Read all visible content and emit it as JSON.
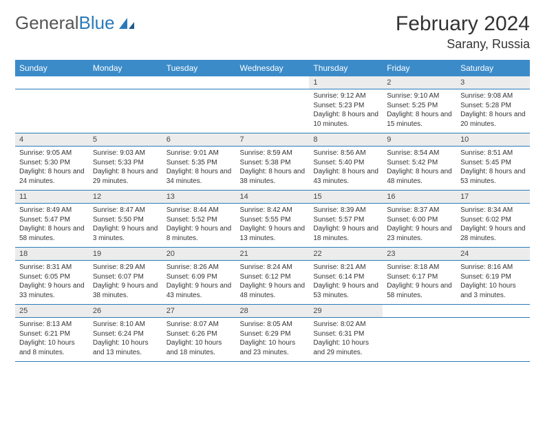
{
  "brand": {
    "part1": "General",
    "part2": "Blue"
  },
  "title": "February 2024",
  "location": "Sarany, Russia",
  "colors": {
    "header_bg": "#3b8bc9",
    "grid_line": "#2a7ab8",
    "daynum_bg": "#ececec"
  },
  "day_headers": [
    "Sunday",
    "Monday",
    "Tuesday",
    "Wednesday",
    "Thursday",
    "Friday",
    "Saturday"
  ],
  "weeks": [
    [
      null,
      null,
      null,
      null,
      {
        "n": "1",
        "sr": "9:12 AM",
        "ss": "5:23 PM",
        "dl": "8 hours and 10 minutes."
      },
      {
        "n": "2",
        "sr": "9:10 AM",
        "ss": "5:25 PM",
        "dl": "8 hours and 15 minutes."
      },
      {
        "n": "3",
        "sr": "9:08 AM",
        "ss": "5:28 PM",
        "dl": "8 hours and 20 minutes."
      }
    ],
    [
      {
        "n": "4",
        "sr": "9:05 AM",
        "ss": "5:30 PM",
        "dl": "8 hours and 24 minutes."
      },
      {
        "n": "5",
        "sr": "9:03 AM",
        "ss": "5:33 PM",
        "dl": "8 hours and 29 minutes."
      },
      {
        "n": "6",
        "sr": "9:01 AM",
        "ss": "5:35 PM",
        "dl": "8 hours and 34 minutes."
      },
      {
        "n": "7",
        "sr": "8:59 AM",
        "ss": "5:38 PM",
        "dl": "8 hours and 38 minutes."
      },
      {
        "n": "8",
        "sr": "8:56 AM",
        "ss": "5:40 PM",
        "dl": "8 hours and 43 minutes."
      },
      {
        "n": "9",
        "sr": "8:54 AM",
        "ss": "5:42 PM",
        "dl": "8 hours and 48 minutes."
      },
      {
        "n": "10",
        "sr": "8:51 AM",
        "ss": "5:45 PM",
        "dl": "8 hours and 53 minutes."
      }
    ],
    [
      {
        "n": "11",
        "sr": "8:49 AM",
        "ss": "5:47 PM",
        "dl": "8 hours and 58 minutes."
      },
      {
        "n": "12",
        "sr": "8:47 AM",
        "ss": "5:50 PM",
        "dl": "9 hours and 3 minutes."
      },
      {
        "n": "13",
        "sr": "8:44 AM",
        "ss": "5:52 PM",
        "dl": "9 hours and 8 minutes."
      },
      {
        "n": "14",
        "sr": "8:42 AM",
        "ss": "5:55 PM",
        "dl": "9 hours and 13 minutes."
      },
      {
        "n": "15",
        "sr": "8:39 AM",
        "ss": "5:57 PM",
        "dl": "9 hours and 18 minutes."
      },
      {
        "n": "16",
        "sr": "8:37 AM",
        "ss": "6:00 PM",
        "dl": "9 hours and 23 minutes."
      },
      {
        "n": "17",
        "sr": "8:34 AM",
        "ss": "6:02 PM",
        "dl": "9 hours and 28 minutes."
      }
    ],
    [
      {
        "n": "18",
        "sr": "8:31 AM",
        "ss": "6:05 PM",
        "dl": "9 hours and 33 minutes."
      },
      {
        "n": "19",
        "sr": "8:29 AM",
        "ss": "6:07 PM",
        "dl": "9 hours and 38 minutes."
      },
      {
        "n": "20",
        "sr": "8:26 AM",
        "ss": "6:09 PM",
        "dl": "9 hours and 43 minutes."
      },
      {
        "n": "21",
        "sr": "8:24 AM",
        "ss": "6:12 PM",
        "dl": "9 hours and 48 minutes."
      },
      {
        "n": "22",
        "sr": "8:21 AM",
        "ss": "6:14 PM",
        "dl": "9 hours and 53 minutes."
      },
      {
        "n": "23",
        "sr": "8:18 AM",
        "ss": "6:17 PM",
        "dl": "9 hours and 58 minutes."
      },
      {
        "n": "24",
        "sr": "8:16 AM",
        "ss": "6:19 PM",
        "dl": "10 hours and 3 minutes."
      }
    ],
    [
      {
        "n": "25",
        "sr": "8:13 AM",
        "ss": "6:21 PM",
        "dl": "10 hours and 8 minutes."
      },
      {
        "n": "26",
        "sr": "8:10 AM",
        "ss": "6:24 PM",
        "dl": "10 hours and 13 minutes."
      },
      {
        "n": "27",
        "sr": "8:07 AM",
        "ss": "6:26 PM",
        "dl": "10 hours and 18 minutes."
      },
      {
        "n": "28",
        "sr": "8:05 AM",
        "ss": "6:29 PM",
        "dl": "10 hours and 23 minutes."
      },
      {
        "n": "29",
        "sr": "8:02 AM",
        "ss": "6:31 PM",
        "dl": "10 hours and 29 minutes."
      },
      null,
      null
    ]
  ],
  "labels": {
    "sunrise": "Sunrise:",
    "sunset": "Sunset:",
    "daylight": "Daylight:"
  }
}
